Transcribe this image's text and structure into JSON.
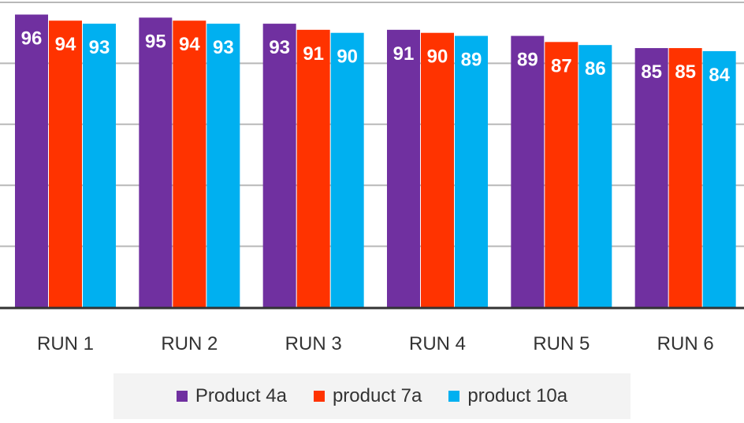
{
  "chart_data": {
    "type": "bar",
    "title": "",
    "xlabel": "",
    "ylabel": "",
    "ylim": [
      0,
      100
    ],
    "grid": true,
    "legend_position": "bottom",
    "categories": [
      "RUN 1",
      "RUN 2",
      "RUN 3",
      "RUN 4",
      "RUN 5",
      "RUN 6"
    ],
    "series": [
      {
        "name": "Product 4a",
        "color": "#7030a0",
        "values": [
          96,
          95,
          93,
          91,
          89,
          85
        ]
      },
      {
        "name": "product 7a",
        "color": "#ff3300",
        "values": [
          94,
          94,
          91,
          90,
          87,
          85
        ]
      },
      {
        "name": "product 10a",
        "color": "#00b0f0",
        "values": [
          93,
          93,
          90,
          89,
          86,
          84
        ]
      }
    ]
  }
}
